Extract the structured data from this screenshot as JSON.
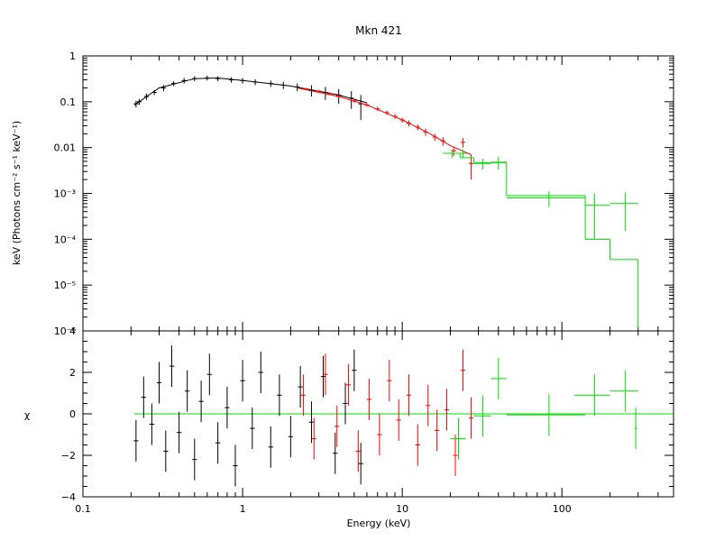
{
  "chart_data": [
    {
      "type": "scatter",
      "title": "Mkn 421",
      "xlabel": "",
      "ylabel": "keV (Photons cm⁻² s⁻¹ keV⁻¹)",
      "xscale": "log",
      "yscale": "log",
      "xlim": [
        0.1,
        500
      ],
      "ylim": [
        1e-06,
        1
      ],
      "x_ticks": [
        0.1,
        1,
        10,
        100
      ],
      "x_tick_labels": [
        "0.1",
        "1",
        "10",
        "100"
      ],
      "y_ticks": [
        1,
        0.1,
        0.01,
        0.001,
        0.0001,
        1e-05,
        1e-06
      ],
      "y_tick_labels": [
        "1",
        "0.1",
        "0.01",
        "10⁻³",
        "10⁻⁴",
        "10⁻⁵",
        "10⁻⁶"
      ],
      "grid": false,
      "series": [
        {
          "color": "#000000",
          "points": [
            {
              "x": 0.215,
              "y": 0.09,
              "yerr": 0.015
            },
            {
              "x": 0.225,
              "y": 0.1,
              "yerr": 0.015
            },
            {
              "x": 0.25,
              "y": 0.13,
              "yerr": 0.02
            },
            {
              "x": 0.28,
              "y": 0.16,
              "yerr": 0.02
            },
            {
              "x": 0.32,
              "y": 0.2,
              "yerr": 0.03
            },
            {
              "x": 0.37,
              "y": 0.25,
              "yerr": 0.03
            },
            {
              "x": 0.43,
              "y": 0.29,
              "yerr": 0.04
            },
            {
              "x": 0.5,
              "y": 0.32,
              "yerr": 0.04
            },
            {
              "x": 0.6,
              "y": 0.33,
              "yerr": 0.04
            },
            {
              "x": 0.7,
              "y": 0.32,
              "yerr": 0.04
            },
            {
              "x": 0.85,
              "y": 0.3,
              "yerr": 0.04
            },
            {
              "x": 1.0,
              "y": 0.29,
              "yerr": 0.04
            },
            {
              "x": 1.2,
              "y": 0.27,
              "yerr": 0.04
            },
            {
              "x": 1.5,
              "y": 0.25,
              "yerr": 0.04
            },
            {
              "x": 1.8,
              "y": 0.23,
              "yerr": 0.04
            },
            {
              "x": 2.2,
              "y": 0.21,
              "yerr": 0.04
            },
            {
              "x": 2.7,
              "y": 0.18,
              "yerr": 0.05
            },
            {
              "x": 3.3,
              "y": 0.16,
              "yerr": 0.05
            },
            {
              "x": 4.0,
              "y": 0.14,
              "yerr": 0.05
            },
            {
              "x": 4.8,
              "y": 0.12,
              "yerr": 0.05
            },
            {
              "x": 5.5,
              "y": 0.09,
              "yerr": 0.05
            }
          ],
          "model": [
            {
              "x": 0.21,
              "y": 0.085
            },
            {
              "x": 0.3,
              "y": 0.2
            },
            {
              "x": 0.5,
              "y": 0.32
            },
            {
              "x": 0.7,
              "y": 0.33
            },
            {
              "x": 1.0,
              "y": 0.29
            },
            {
              "x": 2.0,
              "y": 0.22
            },
            {
              "x": 4.0,
              "y": 0.14
            },
            {
              "x": 6.0,
              "y": 0.095
            }
          ]
        },
        {
          "color": "#ff0000",
          "points": [
            {
              "x": 2.5,
              "y": 0.19,
              "yerr": 0.01
            },
            {
              "x": 3.0,
              "y": 0.17,
              "yerr": 0.01
            },
            {
              "x": 3.5,
              "y": 0.15,
              "yerr": 0.01
            },
            {
              "x": 4.0,
              "y": 0.13,
              "yerr": 0.01
            },
            {
              "x": 5.0,
              "y": 0.105,
              "yerr": 0.01
            },
            {
              "x": 6.0,
              "y": 0.085,
              "yerr": 0.008
            },
            {
              "x": 7.0,
              "y": 0.07,
              "yerr": 0.007
            },
            {
              "x": 8.0,
              "y": 0.058,
              "yerr": 0.006
            },
            {
              "x": 9.0,
              "y": 0.048,
              "yerr": 0.006
            },
            {
              "x": 10.0,
              "y": 0.04,
              "yerr": 0.005
            },
            {
              "x": 11.0,
              "y": 0.034,
              "yerr": 0.005
            },
            {
              "x": 12.5,
              "y": 0.028,
              "yerr": 0.004
            },
            {
              "x": 14.0,
              "y": 0.022,
              "yerr": 0.004
            },
            {
              "x": 16.0,
              "y": 0.017,
              "yerr": 0.003
            },
            {
              "x": 18.0,
              "y": 0.014,
              "yerr": 0.003
            },
            {
              "x": 21.0,
              "y": 0.0085,
              "yerr": 0.002
            },
            {
              "x": 24.0,
              "y": 0.013,
              "yerr": 0.003
            },
            {
              "x": 27.0,
              "y": 0.0045,
              "yerr": 0.0025
            }
          ],
          "model": [
            {
              "x": 2.2,
              "y": 0.2
            },
            {
              "x": 4.0,
              "y": 0.13
            },
            {
              "x": 6.0,
              "y": 0.085
            },
            {
              "x": 10.0,
              "y": 0.04
            },
            {
              "x": 15.0,
              "y": 0.02
            },
            {
              "x": 20.0,
              "y": 0.011
            },
            {
              "x": 27.0,
              "y": 0.007
            }
          ]
        },
        {
          "color": "#00dd00",
          "points": [
            {
              "x": 20.5,
              "y": 0.0075,
              "xlo": 18.0,
              "xhi": 23.0,
              "yerr": 0.0015
            },
            {
              "x": 24.0,
              "y": 0.0075,
              "xlo": 23.0,
              "xhi": 25.5,
              "yerr": 0.0015
            },
            {
              "x": 32.0,
              "y": 0.0045,
              "xlo": 28.0,
              "xhi": 36.0,
              "yerr": 0.0012
            },
            {
              "x": 40.0,
              "y": 0.0048,
              "xlo": 36.0,
              "xhi": 45.0,
              "yerr": 0.0015
            },
            {
              "x": 83.0,
              "y": 0.0008,
              "xlo": 45.0,
              "xhi": 140.0,
              "yerr": 0.0003
            },
            {
              "x": 160.0,
              "y": 0.00055,
              "xlo": 140.0,
              "xhi": 200.0,
              "yerr": 0.00045
            },
            {
              "x": 250.0,
              "y": 0.0006,
              "xlo": 200.0,
              "xhi": 300.0,
              "yerr": 0.00045
            }
          ],
          "model_steps": [
            {
              "xlo": 18.0,
              "xhi": 23.0,
              "y": 0.0075
            },
            {
              "xlo": 23.0,
              "xhi": 28.0,
              "y": 0.006
            },
            {
              "xlo": 28.0,
              "xhi": 45.0,
              "y": 0.0047
            },
            {
              "xlo": 45.0,
              "xhi": 140.0,
              "y": 0.0009
            },
            {
              "xlo": 140.0,
              "xhi": 200.0,
              "y": 0.0001
            },
            {
              "xlo": 200.0,
              "xhi": 300.0,
              "y": 3.6e-05
            }
          ],
          "model_drop": {
            "x": 300.0,
            "y_from": 3.6e-05,
            "y_to": 1.1e-06
          }
        }
      ]
    },
    {
      "type": "scatter",
      "xlabel": "Energy (keV)",
      "ylabel": "χ",
      "xscale": "log",
      "xlim": [
        0.1,
        500
      ],
      "ylim": [
        -4,
        4
      ],
      "x_ticks": [
        0.1,
        1,
        10,
        100
      ],
      "x_tick_labels": [
        "0.1",
        "1",
        "10",
        "100"
      ],
      "y_ticks": [
        -4,
        -2,
        0,
        2,
        4
      ],
      "y_tick_labels": [
        "−4",
        "−2",
        "0",
        "2",
        "4"
      ],
      "grid": false,
      "reference_line": {
        "y": 0,
        "xlo": 0.21,
        "xhi": 500,
        "color": "#00dd00"
      },
      "series": [
        {
          "color": "#000000",
          "points": [
            {
              "x": 0.215,
              "y": -1.3,
              "yerr": 1
            },
            {
              "x": 0.24,
              "y": 0.8,
              "yerr": 1
            },
            {
              "x": 0.27,
              "y": -0.5,
              "yerr": 1
            },
            {
              "x": 0.3,
              "y": 1.5,
              "yerr": 1
            },
            {
              "x": 0.33,
              "y": -1.8,
              "yerr": 1
            },
            {
              "x": 0.36,
              "y": 2.3,
              "yerr": 1
            },
            {
              "x": 0.4,
              "y": -0.9,
              "yerr": 1
            },
            {
              "x": 0.45,
              "y": 1.1,
              "yerr": 1
            },
            {
              "x": 0.5,
              "y": -2.2,
              "yerr": 1
            },
            {
              "x": 0.55,
              "y": 0.6,
              "yerr": 1
            },
            {
              "x": 0.62,
              "y": 1.9,
              "yerr": 1
            },
            {
              "x": 0.7,
              "y": -1.4,
              "yerr": 1
            },
            {
              "x": 0.8,
              "y": 0.3,
              "yerr": 1
            },
            {
              "x": 0.9,
              "y": -2.5,
              "yerr": 1
            },
            {
              "x": 1.0,
              "y": 1.6,
              "yerr": 1
            },
            {
              "x": 1.15,
              "y": -0.7,
              "yerr": 1
            },
            {
              "x": 1.3,
              "y": 2.0,
              "yerr": 1
            },
            {
              "x": 1.5,
              "y": -1.6,
              "yerr": 1
            },
            {
              "x": 1.7,
              "y": 0.9,
              "yerr": 1
            },
            {
              "x": 2.0,
              "y": -1.1,
              "yerr": 1
            },
            {
              "x": 2.3,
              "y": 1.3,
              "yerr": 1
            },
            {
              "x": 2.7,
              "y": -0.4,
              "yerr": 1
            },
            {
              "x": 3.2,
              "y": 1.8,
              "yerr": 1
            },
            {
              "x": 3.8,
              "y": -1.9,
              "yerr": 1
            },
            {
              "x": 4.4,
              "y": 0.5,
              "yerr": 1
            },
            {
              "x": 5.0,
              "y": 2.1,
              "yerr": 1
            },
            {
              "x": 5.5,
              "y": -2.4,
              "yerr": 1
            }
          ]
        },
        {
          "color": "#ff0000",
          "points": [
            {
              "x": 2.4,
              "y": 0.9,
              "yerr": 1
            },
            {
              "x": 2.8,
              "y": -1.2,
              "yerr": 1
            },
            {
              "x": 3.3,
              "y": 1.9,
              "yerr": 1
            },
            {
              "x": 3.9,
              "y": -0.6,
              "yerr": 1
            },
            {
              "x": 4.6,
              "y": 1.4,
              "yerr": 1
            },
            {
              "x": 5.3,
              "y": -1.8,
              "yerr": 1
            },
            {
              "x": 6.2,
              "y": 0.7,
              "yerr": 1
            },
            {
              "x": 7.2,
              "y": -1.0,
              "yerr": 1
            },
            {
              "x": 8.3,
              "y": 1.6,
              "yerr": 1
            },
            {
              "x": 9.5,
              "y": -0.3,
              "yerr": 1
            },
            {
              "x": 11.0,
              "y": 0.9,
              "yerr": 1
            },
            {
              "x": 12.5,
              "y": -1.5,
              "yerr": 1
            },
            {
              "x": 14.5,
              "y": 0.4,
              "yerr": 1
            },
            {
              "x": 16.5,
              "y": -0.8,
              "yerr": 1
            },
            {
              "x": 19.0,
              "y": 0.2,
              "yerr": 1
            },
            {
              "x": 21.5,
              "y": -2.0,
              "yerr": 1
            },
            {
              "x": 24.0,
              "y": 2.1,
              "yerr": 1
            },
            {
              "x": 27.0,
              "y": -0.2,
              "yerr": 1
            }
          ]
        },
        {
          "color": "#00dd00",
          "points": [
            {
              "x": 22.5,
              "y": -1.2,
              "xlo": 20.0,
              "xhi": 25.0,
              "yerr": 1
            },
            {
              "x": 32.0,
              "y": -0.1,
              "xlo": 28.0,
              "xhi": 36.0,
              "yerr": 1
            },
            {
              "x": 40.0,
              "y": 1.7,
              "xlo": 36.0,
              "xhi": 45.0,
              "yerr": 1
            },
            {
              "x": 83.0,
              "y": -0.05,
              "xlo": 45.0,
              "xhi": 140.0,
              "yerr": 1
            },
            {
              "x": 160.0,
              "y": 0.9,
              "xlo": 120.0,
              "xhi": 200.0,
              "yerr": 1
            },
            {
              "x": 250.0,
              "y": 1.1,
              "xlo": 200.0,
              "xhi": 300.0,
              "yerr": 1
            },
            {
              "x": 290.0,
              "y": -0.7,
              "xlo": 285.0,
              "xhi": 295.0,
              "yerr": 1
            }
          ]
        }
      ]
    }
  ]
}
